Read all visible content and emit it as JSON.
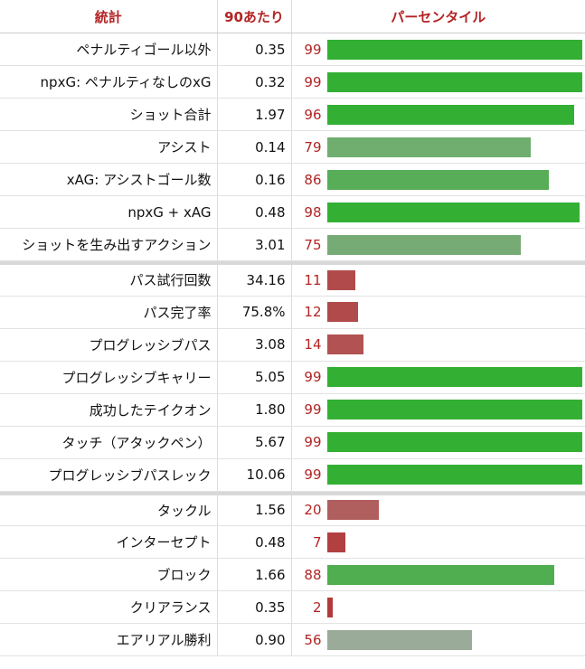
{
  "header": {
    "stat": "統計",
    "per90": "90あたり",
    "percentile": "パーセンタイル"
  },
  "groups": [
    {
      "rows": [
        {
          "label": "ペナルティゴール以外",
          "per90": "0.35",
          "pct": 99,
          "color": "#33b033"
        },
        {
          "label": "npxG: ペナルティなしのxG",
          "per90": "0.32",
          "pct": 99,
          "color": "#33b033"
        },
        {
          "label": "ショット合計",
          "per90": "1.97",
          "pct": 96,
          "color": "#33b033"
        },
        {
          "label": "アシスト",
          "per90": "0.14",
          "pct": 79,
          "color": "#6fae6f"
        },
        {
          "label": "xAG: アシストゴール数",
          "per90": "0.16",
          "pct": 86,
          "color": "#58ad58"
        },
        {
          "label": "npxG + xAG",
          "per90": "0.48",
          "pct": 98,
          "color": "#33b033"
        },
        {
          "label": "ショットを生み出すアクション",
          "per90": "3.01",
          "pct": 75,
          "color": "#76ab76"
        }
      ]
    },
    {
      "rows": [
        {
          "label": "パス試行回数",
          "per90": "34.16",
          "pct": 11,
          "color": "#b14b4b"
        },
        {
          "label": "パス完了率",
          "per90": "75.8%",
          "pct": 12,
          "color": "#b14b4b"
        },
        {
          "label": "プログレッシブパス",
          "per90": "3.08",
          "pct": 14,
          "color": "#b25252"
        },
        {
          "label": "プログレッシブキャリー",
          "per90": "5.05",
          "pct": 99,
          "color": "#33b033"
        },
        {
          "label": "成功したテイクオン",
          "per90": "1.80",
          "pct": 99,
          "color": "#33b033"
        },
        {
          "label": "タッチ（アタックペン）",
          "per90": "5.67",
          "pct": 99,
          "color": "#33b033"
        },
        {
          "label": "プログレッシブパスレック",
          "per90": "10.06",
          "pct": 99,
          "color": "#33b033"
        }
      ]
    },
    {
      "rows": [
        {
          "label": "タックル",
          "per90": "1.56",
          "pct": 20,
          "color": "#b05e5e"
        },
        {
          "label": "インターセプト",
          "per90": "0.48",
          "pct": 7,
          "color": "#b24040"
        },
        {
          "label": "ブロック",
          "per90": "1.66",
          "pct": 88,
          "color": "#50ad50"
        },
        {
          "label": "クリアランス",
          "per90": "0.35",
          "pct": 2,
          "color": "#b33a3a"
        },
        {
          "label": "エアリアル勝利",
          "per90": "0.90",
          "pct": 56,
          "color": "#9aab9a"
        }
      ]
    }
  ]
}
